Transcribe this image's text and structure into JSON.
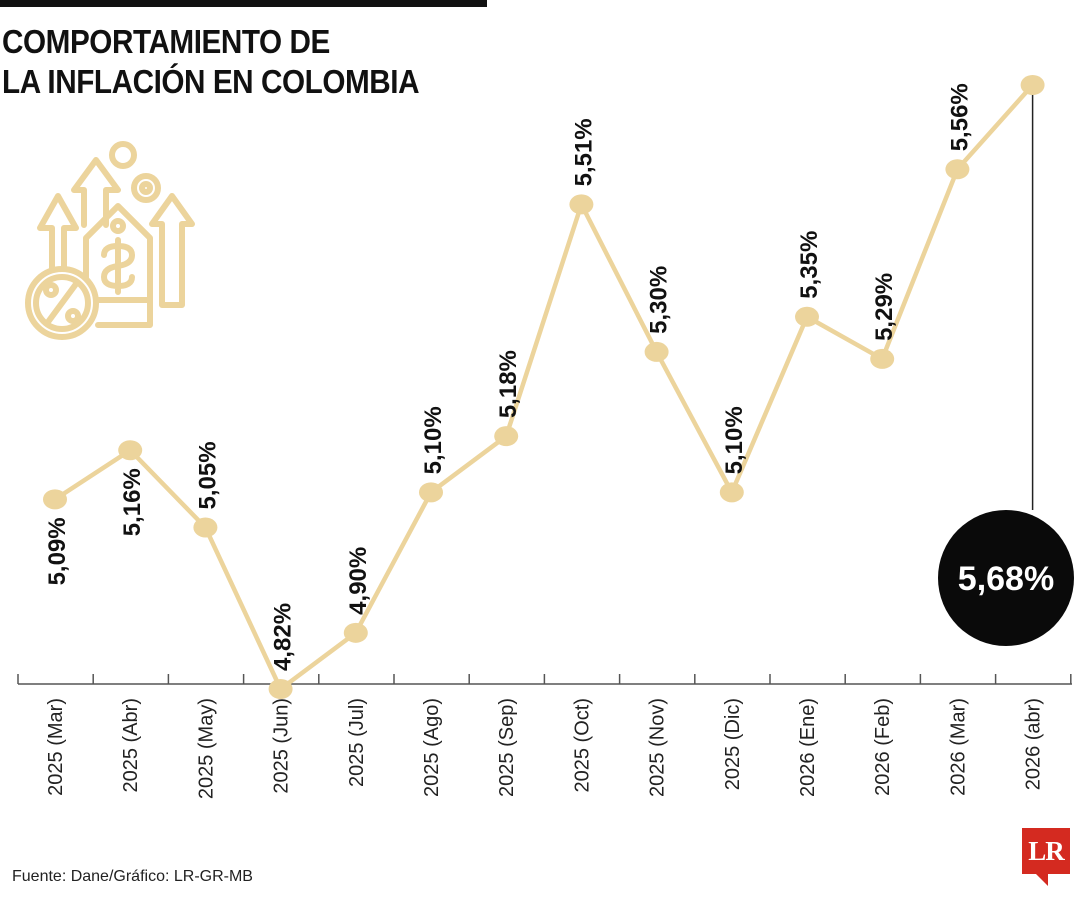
{
  "title": {
    "line1": "COMPORTAMIENTO DE",
    "line2": "LA INFLACIÓN EN COLOMBIA"
  },
  "source": "Fuente: Dane/Gráfico: LR-GR-MB",
  "brand": {
    "logo_text": "LR"
  },
  "icon": "inflation-money-percent-arrows-icon",
  "colors": {
    "line": "#ecd49c",
    "text": "#111111",
    "highlight_circle": "#0a0a0a",
    "highlight_text": "#ffffff",
    "brand": "#d42a20"
  },
  "chart_data": {
    "type": "line",
    "categories": [
      "2025 (Mar)",
      "2025 (Abr)",
      "2025 (May)",
      "2025 (Jun)",
      "2025 (Jul)",
      "2025 (Ago)",
      "2025 (Sep)",
      "2025 (Oct)",
      "2025 (Nov)",
      "2025 (Dic)",
      "2026 (Ene)",
      "2026 (Feb)",
      "2026 (Mar)",
      "2026 (abr)"
    ],
    "values": [
      5.09,
      5.16,
      5.05,
      4.82,
      4.9,
      5.1,
      5.18,
      5.51,
      5.3,
      5.1,
      5.35,
      5.29,
      5.56,
      5.68
    ],
    "labels": [
      "5,09%",
      "5,16%",
      "5,05%",
      "4,82%",
      "4,90%",
      "5,10%",
      "5,18%",
      "5,51%",
      "5,30%",
      "5,10%",
      "5,35%",
      "5,29%",
      "5,56%",
      "5,68%"
    ],
    "label_side": [
      "below",
      "below",
      "above",
      "above",
      "above",
      "above",
      "above",
      "above",
      "above",
      "above",
      "above",
      "above",
      "above",
      "callout"
    ],
    "highlight": {
      "index": 13,
      "label": "5,68%"
    },
    "title": "COMPORTAMIENTO DE LA INFLACIÓN EN COLOMBIA",
    "xlabel": "",
    "ylabel": "",
    "ylim": [
      4.82,
      5.68
    ],
    "grid": false,
    "legend": "none"
  }
}
